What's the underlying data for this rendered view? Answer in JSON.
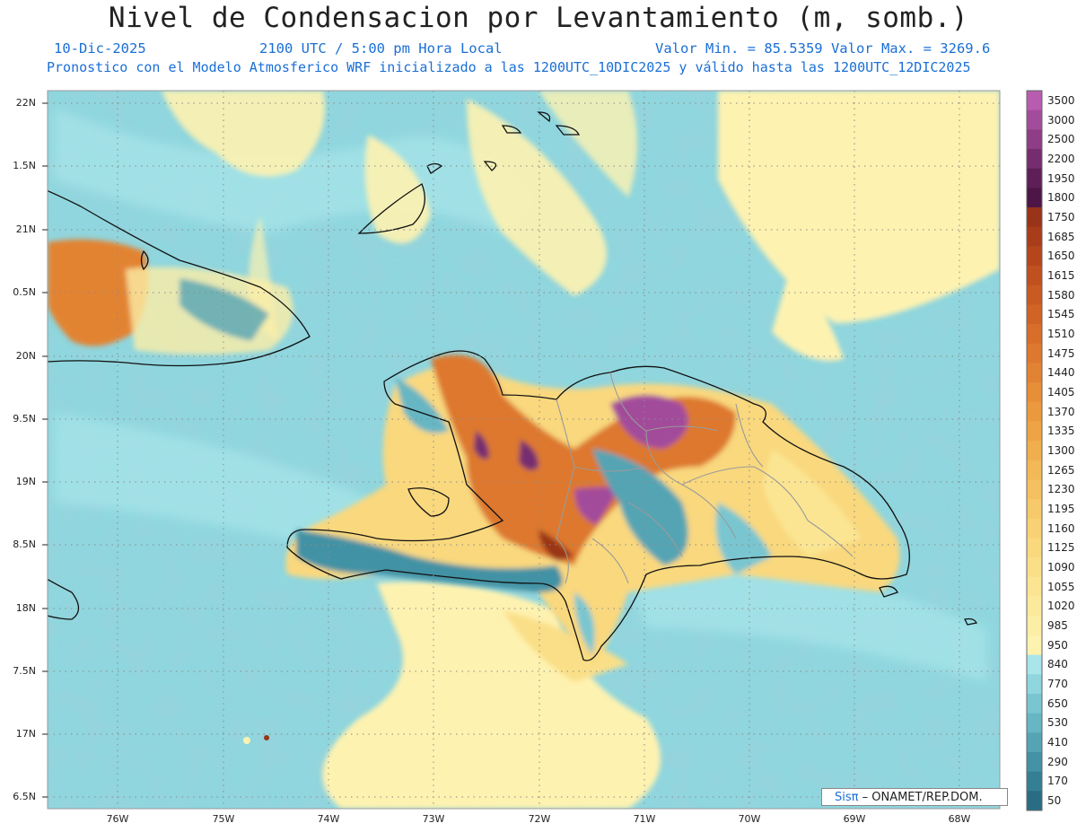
{
  "title": "Nivel de Condensacion por Levantamiento (m, somb.)",
  "subtitle": {
    "date": "10-Dic-2025",
    "time": "2100 UTC / 5:00 pm Hora Local",
    "minmax": "Valor Min. = 85.5359   Valor Max. = 3269.6",
    "model": "Pronostico con el Modelo Atmosferico WRF inicializado a las 1200UTC_10DIC2025 y válido hasta las  1200UTC_12DIC2025"
  },
  "lat_labels": [
    "22N",
    "1.5N",
    "21N",
    "0.5N",
    "20N",
    "9.5N",
    "19N",
    "8.5N",
    "18N",
    "7.5N",
    "17N",
    "6.5N"
  ],
  "lon_labels": [
    "76W",
    "75W",
    "74W",
    "73W",
    "72W",
    "71W",
    "70W",
    "69W",
    "68W"
  ],
  "colorbar": {
    "labels": [
      "3500",
      "3000",
      "2500",
      "2200",
      "1950",
      "1800",
      "1750",
      "1685",
      "1650",
      "1615",
      "1580",
      "1545",
      "1510",
      "1475",
      "1440",
      "1405",
      "1370",
      "1335",
      "1300",
      "1265",
      "1230",
      "1195",
      "1160",
      "1125",
      "1090",
      "1055",
      "1020",
      "985",
      "950",
      "840",
      "770",
      "650",
      "530",
      "410",
      "290",
      "170",
      "50"
    ],
    "colors": [
      "#b85cb0",
      "#a34c9b",
      "#8e3d86",
      "#762d6f",
      "#5e1f58",
      "#4d1646",
      "#9a3418",
      "#a93d1a",
      "#b5461c",
      "#bf501f",
      "#c85a22",
      "#d06426",
      "#d76e2a",
      "#dd782e",
      "#e28333",
      "#e78e39",
      "#eb993f",
      "#eea446",
      "#f1ae4e",
      "#f3b857",
      "#f5c160",
      "#f6c96a",
      "#f8d174",
      "#f9d87e",
      "#fadf88",
      "#fbe592",
      "#fcea9c",
      "#fdeea6",
      "#fef2b0",
      "#a8e6ea",
      "#8fd6de",
      "#79c6d0",
      "#66b6c3",
      "#54a4b4",
      "#4392a5",
      "#357f95",
      "#2a6c84"
    ]
  },
  "credit": {
    "sis": "Sisπ",
    "rest": "– ONAMET/REP.DOM."
  },
  "colors": {
    "ocean": "#8fd6de",
    "accent": "#1a6fd6"
  }
}
